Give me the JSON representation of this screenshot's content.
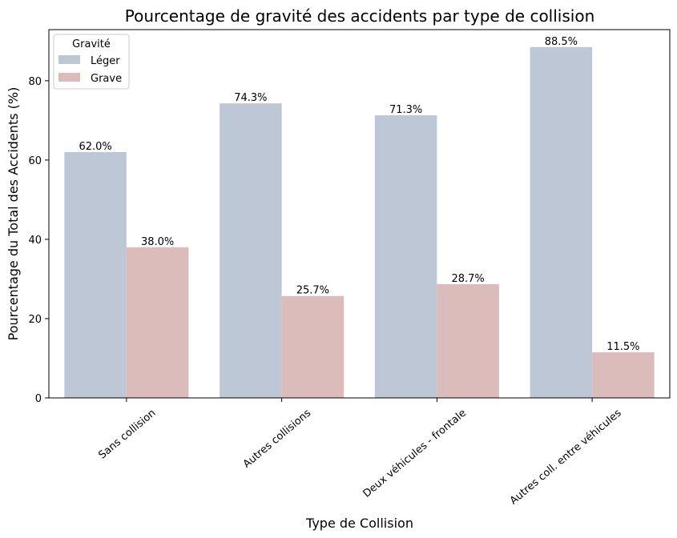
{
  "chart_data": {
    "type": "bar",
    "title": "Pourcentage de gravité des accidents par type de collision",
    "xlabel": "Type de Collision",
    "ylabel": "Pourcentage du Total des Accidents (%)",
    "categories": [
      "Sans collision",
      "Autres collisions",
      "Deux véhicules - frontale",
      "Autres coll. entre véhicules"
    ],
    "series": [
      {
        "name": "Léger",
        "color": "#bec7d5",
        "values": [
          62.0,
          74.3,
          71.3,
          88.5
        ]
      },
      {
        "name": "Grave",
        "color": "#dbbcbb",
        "values": [
          38.0,
          25.7,
          28.7,
          11.5
        ]
      }
    ],
    "ylim": [
      0,
      92.9
    ],
    "yticks": [
      0,
      20,
      40,
      60,
      80
    ],
    "legend": {
      "title": "Gravité",
      "placement": "top-left"
    },
    "grid": false
  }
}
